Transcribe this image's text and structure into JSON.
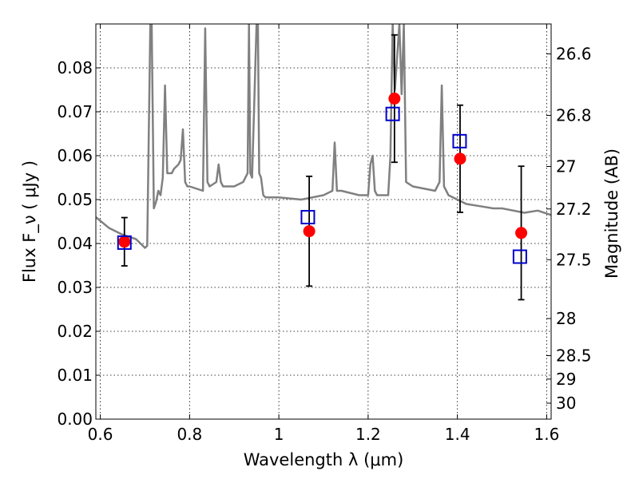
{
  "chart_data": {
    "type": "scatter",
    "title": "",
    "xlabel": "Wavelength  λ (μm)",
    "ylabel": "Flux  F_ν  ( μJy )",
    "ylabel_right": "Magnitude (AB)",
    "xlim": [
      0.59,
      1.61
    ],
    "ylim": [
      0.0,
      0.09
    ],
    "grid": true,
    "x_ticks": [
      0.6,
      0.8,
      1.0,
      1.2,
      1.4,
      1.6
    ],
    "x_tick_labels": [
      "0.6",
      "0.8",
      "1",
      "1.2",
      "1.4",
      "1.6"
    ],
    "y_ticks": [
      0.0,
      0.01,
      0.02,
      0.03,
      0.04,
      0.05,
      0.06,
      0.07,
      0.08
    ],
    "y_tick_labels": [
      "0.00",
      "0.01",
      "0.02",
      "0.03",
      "0.04",
      "0.05",
      "0.06",
      "0.07",
      "0.08"
    ],
    "right_ticks": [
      {
        "mag": 26.6,
        "label": "26.6"
      },
      {
        "mag": 26.8,
        "label": "26.8"
      },
      {
        "mag": 27.0,
        "label": "27"
      },
      {
        "mag": 27.2,
        "label": "27.2"
      },
      {
        "mag": 27.5,
        "label": "27.5"
      },
      {
        "mag": 28.0,
        "label": "28"
      },
      {
        "mag": 28.5,
        "label": "28.5"
      },
      {
        "mag": 29.0,
        "label": "29"
      },
      {
        "mag": 30.0,
        "label": "30"
      }
    ],
    "colors": {
      "model": "#808080",
      "observed": "#ff0000",
      "model_photometry": "#0000cc",
      "errorbar": "#000000"
    },
    "series": [
      {
        "values": [
          {
            "x": 0.654,
            "y": 0.0404,
            "yerr": 0.0055
          },
          {
            "x": 1.068,
            "y": 0.0428,
            "yerr": 0.0125
          },
          {
            "x": 1.259,
            "y": 0.073,
            "yerr": 0.0145
          },
          {
            "x": 1.406,
            "y": 0.0593,
            "yerr": 0.0122
          },
          {
            "x": 1.543,
            "y": 0.0424,
            "yerr": 0.0152
          }
        ]
      },
      {
        "values": [
          {
            "x": 0.654,
            "y": 0.0402
          },
          {
            "x": 1.065,
            "y": 0.046
          },
          {
            "x": 1.255,
            "y": 0.0695
          },
          {
            "x": 1.405,
            "y": 0.0633
          },
          {
            "x": 1.54,
            "y": 0.037
          }
        ]
      },
      {
        "x": [
          0.59,
          0.62,
          0.65,
          0.68,
          0.7,
          0.705,
          0.712,
          0.715,
          0.72,
          0.725,
          0.73,
          0.735,
          0.74,
          0.745,
          0.75,
          0.76,
          0.765,
          0.775,
          0.78,
          0.785,
          0.79,
          0.795,
          0.8,
          0.83,
          0.835,
          0.84,
          0.845,
          0.86,
          0.865,
          0.87,
          0.875,
          0.9,
          0.92,
          0.93,
          0.933,
          0.936,
          0.94,
          0.95,
          0.953,
          0.956,
          0.96,
          0.965,
          0.97,
          1.0,
          1.05,
          1.1,
          1.12,
          1.125,
          1.13,
          1.14,
          1.18,
          1.2,
          1.205,
          1.21,
          1.215,
          1.22,
          1.245,
          1.25,
          1.255,
          1.26,
          1.27,
          1.275,
          1.28,
          1.285,
          1.3,
          1.35,
          1.36,
          1.365,
          1.37,
          1.38,
          1.4,
          1.42,
          1.45,
          1.48,
          1.5,
          1.55,
          1.58,
          1.61
        ],
        "y": [
          0.046,
          0.0435,
          0.042,
          0.041,
          0.039,
          0.0395,
          0.09,
          0.09,
          0.048,
          0.0495,
          0.052,
          0.051,
          0.055,
          0.076,
          0.056,
          0.056,
          0.057,
          0.058,
          0.059,
          0.066,
          0.054,
          0.053,
          0.053,
          0.052,
          0.089,
          0.054,
          0.053,
          0.054,
          0.058,
          0.054,
          0.053,
          0.053,
          0.054,
          0.056,
          0.09,
          0.056,
          0.055,
          0.09,
          0.09,
          0.056,
          0.055,
          0.051,
          0.0505,
          0.0505,
          0.05,
          0.051,
          0.052,
          0.063,
          0.052,
          0.052,
          0.051,
          0.051,
          0.058,
          0.06,
          0.052,
          0.051,
          0.051,
          0.06,
          0.09,
          0.075,
          0.09,
          0.074,
          0.09,
          0.054,
          0.053,
          0.052,
          0.054,
          0.076,
          0.053,
          0.051,
          0.05,
          0.049,
          0.0485,
          0.048,
          0.048,
          0.047,
          0.0475,
          0.0465
        ]
      }
    ]
  }
}
